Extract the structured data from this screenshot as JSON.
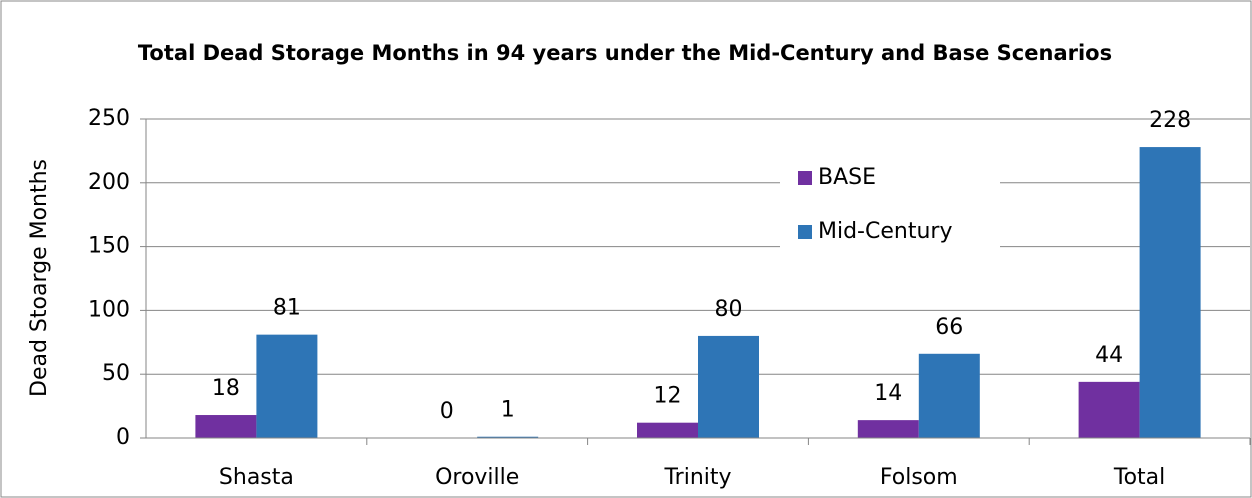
{
  "chart_data": {
    "type": "bar",
    "title": "Total Dead Storage Months in 94 years  under the Mid-Century and Base Scenarios",
    "y_label": "Dead Stoarge Months",
    "categories": [
      "Shasta",
      "Oroville",
      "Trinity",
      "Folsom",
      "Total"
    ],
    "series": [
      {
        "name": "BASE",
        "color": "#7030a0",
        "values": [
          18,
          0,
          12,
          14,
          44
        ]
      },
      {
        "name": "Mid-Century",
        "color": "#2e75b6",
        "values": [
          81,
          1,
          80,
          66,
          228
        ]
      }
    ],
    "ylim": [
      0,
      250
    ],
    "yticks": [
      0,
      50,
      100,
      150,
      200,
      250
    ],
    "grid": true
  }
}
